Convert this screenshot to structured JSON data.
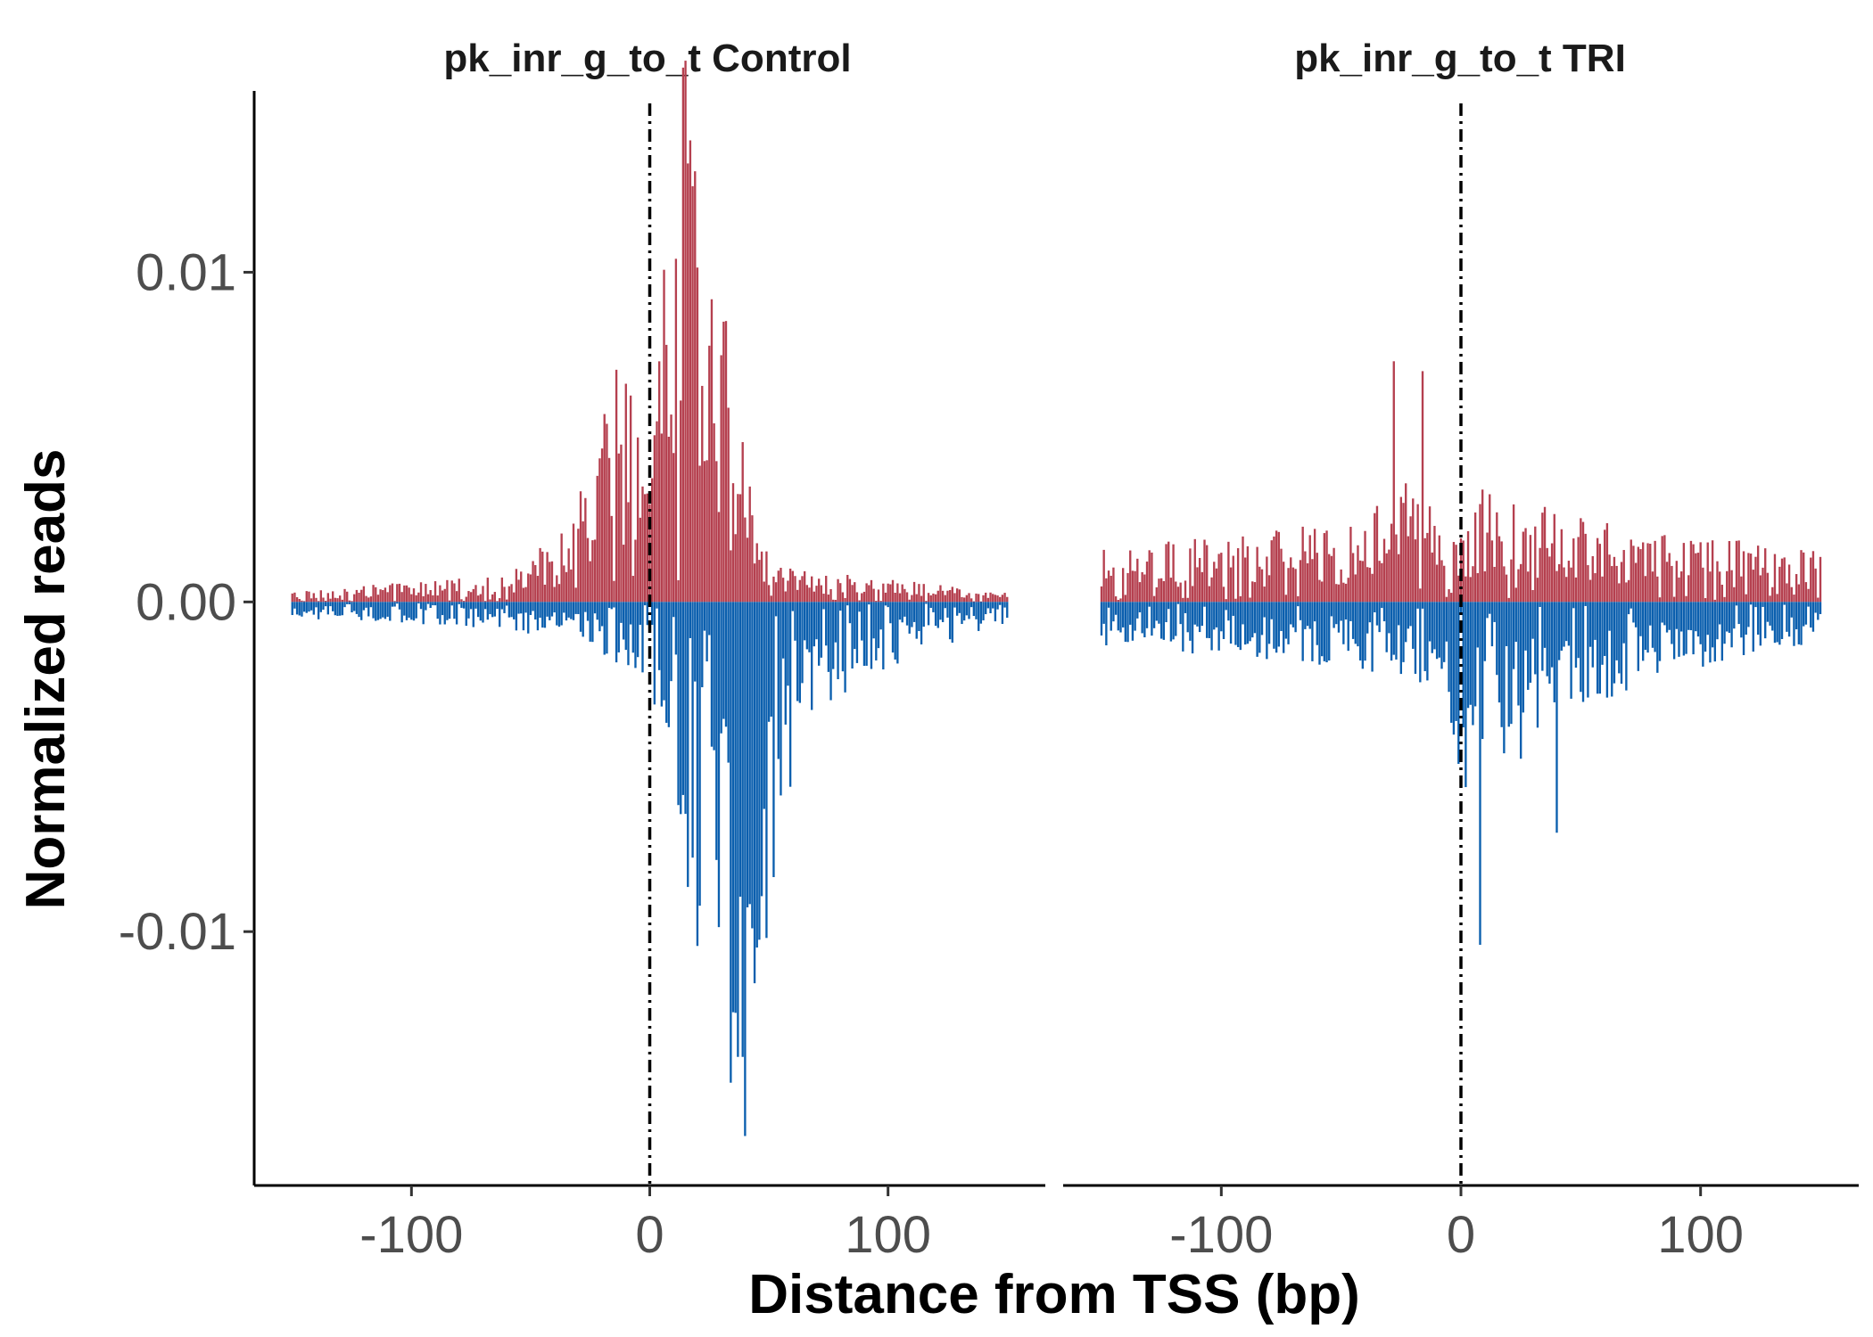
{
  "chart_data": {
    "type": "bar",
    "xlabel": "Distance from TSS (bp)",
    "ylabel": "Normalized reads",
    "x_range": [
      -150,
      150
    ],
    "xlim": [
      -166,
      166
    ],
    "ylim": [
      -0.0177,
      0.0155
    ],
    "x_ticks": [
      -100,
      0,
      100
    ],
    "x_tick_labels": [
      "-100",
      "0",
      "100"
    ],
    "y_ticks": [
      0.01,
      0.0,
      -0.01
    ],
    "y_tick_labels": [
      "0.01",
      "0.00",
      "-0.01"
    ],
    "reference_line_x": 0,
    "colors": {
      "plus_strand": "#B5404F",
      "minus_strand": "#0B5FAE"
    },
    "panels": [
      {
        "title": "pk_inr_g_to_t Control",
        "profile_knots": {
          "plus": [
            [
              -150,
              0.0002
            ],
            [
              -60,
              0.0005
            ],
            [
              -40,
              0.0012
            ],
            [
              -25,
              0.0025
            ],
            [
              -15,
              0.0045
            ],
            [
              -10,
              0.005
            ],
            [
              -5,
              0.0032
            ],
            [
              0,
              0.003
            ],
            [
              5,
              0.006
            ],
            [
              12,
              0.0095
            ],
            [
              18,
              0.0105
            ],
            [
              25,
              0.008
            ],
            [
              35,
              0.004
            ],
            [
              45,
              0.0015
            ],
            [
              60,
              0.0006
            ],
            [
              150,
              0.0002
            ]
          ],
          "minus": [
            [
              -150,
              -0.0003
            ],
            [
              -60,
              -0.0005
            ],
            [
              -30,
              -0.0008
            ],
            [
              -10,
              -0.0012
            ],
            [
              0,
              -0.0018
            ],
            [
              10,
              -0.0035
            ],
            [
              20,
              -0.0065
            ],
            [
              30,
              -0.0085
            ],
            [
              38,
              -0.0092
            ],
            [
              45,
              -0.008
            ],
            [
              55,
              -0.004
            ],
            [
              70,
              -0.002
            ],
            [
              100,
              -0.0012
            ],
            [
              150,
              -0.0004
            ]
          ]
        },
        "peaks": [
          {
            "x": 17,
            "y": 0.014
          },
          {
            "x": 16,
            "y": 0.0133
          },
          {
            "x": 40,
            "y": -0.0162
          },
          {
            "x": 39,
            "y": -0.0138
          },
          {
            "x": 37,
            "y": -0.0138
          },
          {
            "x": 43,
            "y": -0.0099
          }
        ]
      },
      {
        "title": "pk_inr_g_to_t TRI",
        "profile_knots": {
          "plus": [
            [
              -150,
              0.001
            ],
            [
              -100,
              0.0012
            ],
            [
              -50,
              0.0015
            ],
            [
              -30,
              0.002
            ],
            [
              -20,
              0.0025
            ],
            [
              -10,
              0.0018
            ],
            [
              0,
              0.0015
            ],
            [
              10,
              0.0022
            ],
            [
              30,
              0.0018
            ],
            [
              60,
              0.0015
            ],
            [
              100,
              0.0012
            ],
            [
              150,
              0.001
            ]
          ],
          "minus": [
            [
              -150,
              -0.0008
            ],
            [
              -100,
              -0.001
            ],
            [
              -50,
              -0.0012
            ],
            [
              -20,
              -0.0015
            ],
            [
              -5,
              -0.0025
            ],
            [
              0,
              -0.0032
            ],
            [
              5,
              -0.004
            ],
            [
              10,
              -0.0035
            ],
            [
              30,
              -0.0028
            ],
            [
              50,
              -0.002
            ],
            [
              100,
              -0.0012
            ],
            [
              150,
              -0.0008
            ]
          ]
        },
        "peaks": [
          {
            "x": -28,
            "y": 0.0073
          },
          {
            "x": -16,
            "y": 0.007
          },
          {
            "x": 8,
            "y": -0.0104
          },
          {
            "x": 40,
            "y": -0.007
          }
        ]
      }
    ]
  }
}
